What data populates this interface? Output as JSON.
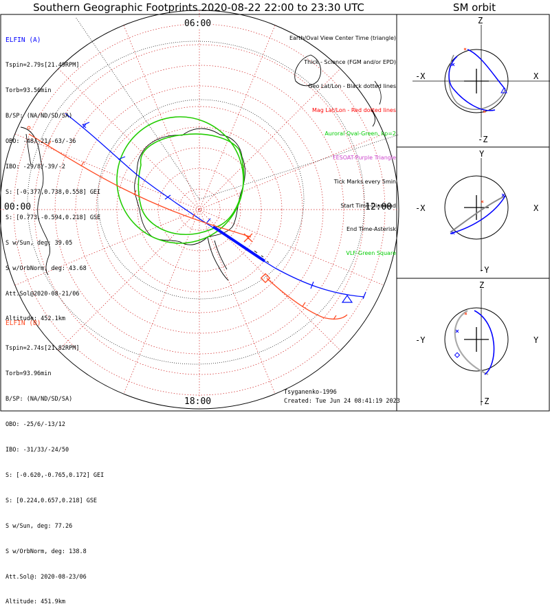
{
  "title": "Southern Geographic Footprints 2020-08-22 22:00 to 23:30 UTC",
  "sm_title": "SM orbit",
  "time_labels": {
    "top": "06:00",
    "left": "00:00",
    "right": "12:00",
    "bottom": "18:00"
  },
  "elfin_a": {
    "name": "ELFIN (A)",
    "color": "#0000ff",
    "lines": [
      "Tspin=2.79s[21.49RPM]",
      "Torb=93.56min",
      "B/SP: (NA/ND/SD/SA)",
      "OBO: -48/-21/-63/-36",
      "IBO: -29/8/-39/-2",
      "S: [-0.377,0.738,0.558] GEI",
      "S: [0.773,-0.594,0.218] GSE",
      "S w/Sun, deg: 39.05",
      "S w/OrbNorm, deg: 43.68",
      "Att.Sol@2020-08-21/06",
      "Altitude: 452.1km"
    ]
  },
  "elfin_b": {
    "name": "ELFIN (B)",
    "color": "#ff4a22",
    "lines": [
      "Tspin=2.74s[21.82RPM]",
      "Torb=93.96min",
      "B/SP: (NA/ND/SD/SA)",
      "OBO: -25/6/-13/12",
      "IBO: -31/33/-24/50",
      "S: [-0.620,-0.765,0.172] GEI",
      "S: [0.224,0.657,0.218] GSE",
      "S w/Sun, deg: 77.26",
      "S w/OrbNorm, deg: 138.8",
      "Att.Sol@: 2020-08-23/06",
      "Altitude: 451.9km"
    ]
  },
  "legend": [
    {
      "text": "Earth/Oval View Center Time (triangle)",
      "color": "#000000"
    },
    {
      "text": "Thick - Science (FGM and/or EPD)",
      "color": "#000000"
    },
    {
      "text": "Geo Lat/Lon - Black dotted lines",
      "color": "#000000"
    },
    {
      "text": "Mag Lat/Lon - Red dotted lines",
      "color": "#ff0000"
    },
    {
      "text": "Auroral Oval-Green, kp=2",
      "color": "#00cc00"
    },
    {
      "text": "FESOAT-Purple Triangle",
      "color": "#cc44cc"
    },
    {
      "text": "Tick Marks every 5min",
      "color": "#000000"
    },
    {
      "text": "Start Time-Diamond",
      "color": "#000000"
    },
    {
      "text": "End Time-Asterisk",
      "color": "#000000"
    },
    {
      "text": "VLF-Green Square",
      "color": "#00cc00"
    }
  ],
  "footer": {
    "author": "Tsyganenko-1996",
    "created": "Created: Tue Jun 24 08:41:19 2023"
  },
  "panels": [
    {
      "top": "Z",
      "bottom": "-Z",
      "left": "-X",
      "right": "X"
    },
    {
      "top": "Y",
      "bottom": "-Y",
      "left": "-X",
      "right": "X"
    },
    {
      "top": "Z",
      "bottom": "-Z",
      "left": "-Y",
      "right": "Y"
    }
  ]
}
